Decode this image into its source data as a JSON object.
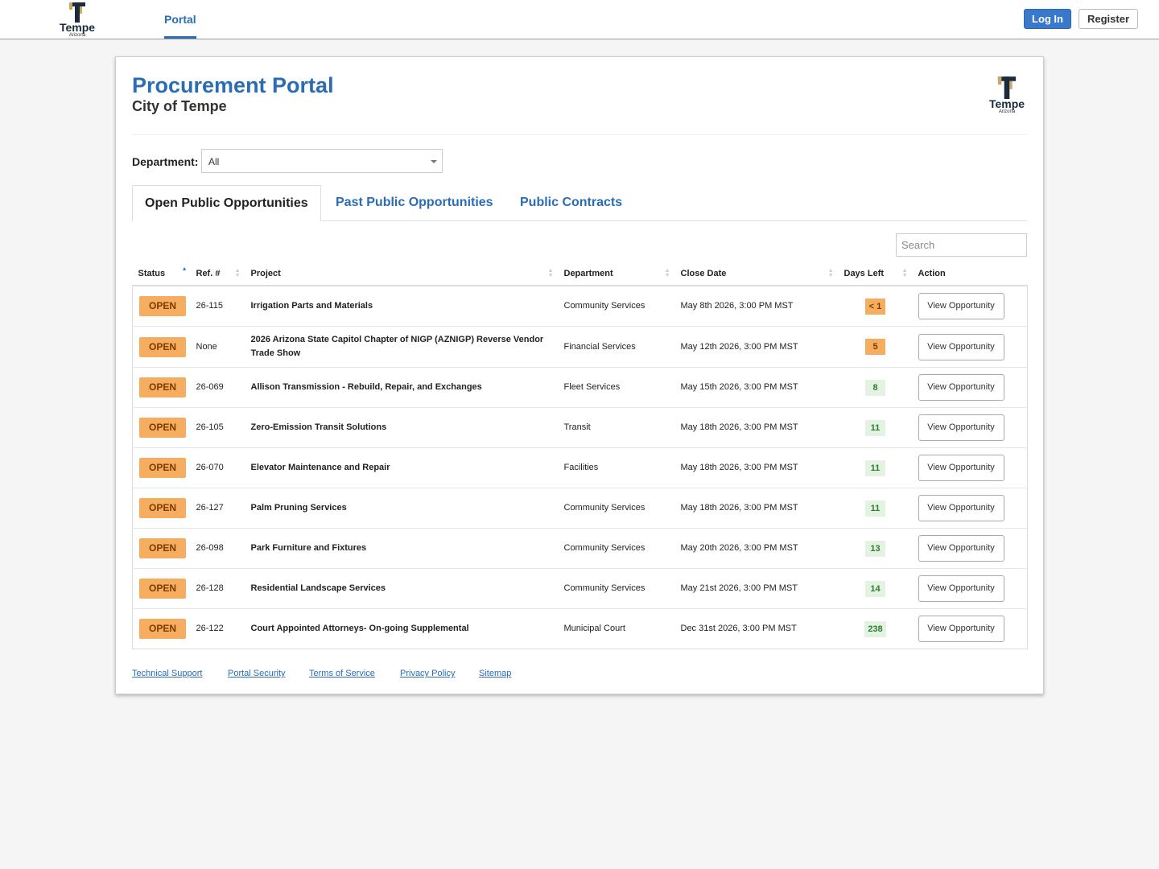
{
  "nav": {
    "logo": {
      "name": "Tempe",
      "state": "Arizona"
    },
    "link": "Portal",
    "login": "Log In",
    "register": "Register"
  },
  "header": {
    "title": "Procurement Portal",
    "subtitle": "City of Tempe",
    "logo": {
      "name": "Tempe",
      "state": "Arizona"
    }
  },
  "filter": {
    "label": "Department:",
    "value": "All"
  },
  "tabs": [
    "Open Public Opportunities",
    "Past Public Opportunities",
    "Public Contracts"
  ],
  "search": {
    "placeholder": "Search"
  },
  "table": {
    "columns": [
      "Status",
      "Ref. #",
      "Project",
      "Department",
      "Close Date",
      "Days Left",
      "Action"
    ],
    "rows": [
      {
        "status": "OPEN",
        "ref": "26-115",
        "project": "Irrigation Parts and Materials",
        "department": "Community Services",
        "close_date": "May 8th 2026, 3:00 PM MST",
        "days_left": "< 1",
        "days_left_color": "#f6ad5f",
        "action": "View Opportunity"
      },
      {
        "status": "OPEN",
        "ref": "None",
        "project": "2026 Arizona State Capitol Chapter of NIGP (AZNIGP) Reverse Vendor Trade Show",
        "department": "Financial Services",
        "close_date": "May 12th 2026, 3:00 PM MST",
        "days_left": "5",
        "days_left_color": "#f6ad5f",
        "action": "View Opportunity"
      },
      {
        "status": "OPEN",
        "ref": "26-069",
        "project": "Allison Transmission - Rebuild, Repair, and Exchanges",
        "department": "Fleet Services",
        "close_date": "May 15th 2026, 3:00 PM MST",
        "days_left": "8",
        "days_left_color": "#e3f2e1",
        "action": "View Opportunity"
      },
      {
        "status": "OPEN",
        "ref": "26-105",
        "project": "Zero-Emission Transit Solutions",
        "department": "Transit",
        "close_date": "May 18th 2026, 3:00 PM MST",
        "days_left": "11",
        "days_left_color": "#e3f2e1",
        "action": "View Opportunity"
      },
      {
        "status": "OPEN",
        "ref": "26-070",
        "project": "Elevator Maintenance and Repair",
        "department": "Facilities",
        "close_date": "May 18th 2026, 3:00 PM MST",
        "days_left": "11",
        "days_left_color": "#e3f2e1",
        "action": "View Opportunity"
      },
      {
        "status": "OPEN",
        "ref": "26-127",
        "project": "Palm Pruning Services",
        "department": "Community Services",
        "close_date": "May 18th 2026, 3:00 PM MST",
        "days_left": "11",
        "days_left_color": "#e3f2e1",
        "action": "View Opportunity"
      },
      {
        "status": "OPEN",
        "ref": "26-098",
        "project": "Park Furniture and Fixtures",
        "department": "Community Services",
        "close_date": "May 20th 2026, 3:00 PM MST",
        "days_left": "13",
        "days_left_color": "#e3f2e1",
        "action": "View Opportunity"
      },
      {
        "status": "OPEN",
        "ref": "26-128",
        "project": "Residential Landscape Services",
        "department": "Community Services",
        "close_date": "May 21st 2026, 3:00 PM MST",
        "days_left": "14",
        "days_left_color": "#e3f2e1",
        "action": "View Opportunity"
      },
      {
        "status": "OPEN",
        "ref": "26-122",
        "project": "Court Appointed Attorneys- On-going Supplemental",
        "department": "Municipal Court",
        "close_date": "Dec 31st 2026, 3:00 PM MST",
        "days_left": "238",
        "days_left_color": "#e3f2e1",
        "action": "View Opportunity"
      }
    ]
  },
  "footer": {
    "links": [
      "Technical Support",
      "Portal Security",
      "Terms of Service",
      "Privacy Policy",
      "Sitemap"
    ]
  }
}
